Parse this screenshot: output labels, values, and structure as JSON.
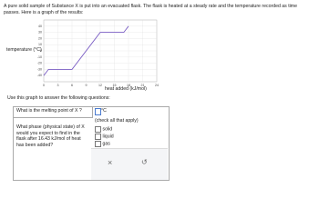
{
  "intro": "A pure solid sample of Substance X is put into an evacuated flask. The flask is heated at a steady rate and the temperature recorded as time passes. Here is a graph of the results:",
  "graph": {
    "y_label": "temperature (°C)",
    "x_label": "heat added (kJ/mol)",
    "xlim": [
      0,
      24
    ],
    "xticks": [
      0,
      3,
      6,
      9,
      12,
      15,
      18,
      21,
      24
    ],
    "ylim": [
      -50,
      50
    ],
    "yticks": [
      -40,
      -30,
      -20,
      -10,
      0,
      10,
      20,
      30,
      40
    ],
    "curve": {
      "x": [
        0,
        1,
        6,
        12,
        17,
        18
      ],
      "y": [
        -40,
        -30,
        -30,
        30,
        30,
        40
      ],
      "color": "#7b5ec4"
    }
  },
  "instruction": "Use this graph to answer the following questions:",
  "questions": [
    {
      "prompt": "What is the melting point of X ?",
      "unit": "°C"
    },
    {
      "prompt": "What phase (physical state) of X would you expect to find in the flask after 16.43 kJ/mol of heat has been added?",
      "hint": "(check all that apply)",
      "options": [
        "solid",
        "liquid",
        "gas"
      ]
    }
  ]
}
